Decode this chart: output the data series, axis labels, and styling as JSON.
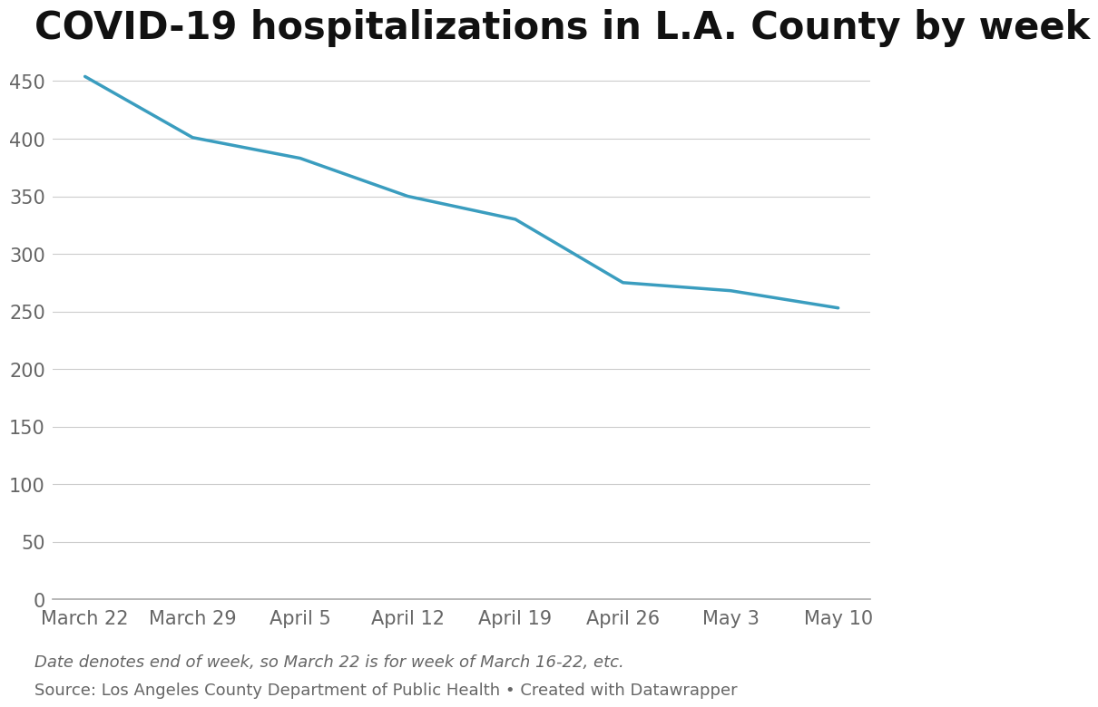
{
  "title": "COVID-19 hospitalizations in L.A. County by week",
  "x_labels": [
    "March 22",
    "March 29",
    "April 5",
    "April 12",
    "April 19",
    "April 26",
    "May 3",
    "May 10"
  ],
  "y_values": [
    454,
    401,
    383,
    350,
    330,
    275,
    268,
    253
  ],
  "line_color": "#3a9dbf",
  "line_width": 2.5,
  "ylim": [
    0,
    470
  ],
  "yticks": [
    0,
    50,
    100,
    150,
    200,
    250,
    300,
    350,
    400,
    450
  ],
  "background_color": "#ffffff",
  "grid_color": "#cccccc",
  "title_fontsize": 30,
  "tick_fontsize": 15,
  "footnote_italic": "Date denotes end of week, so March 22 is for week of March 16-22, etc.",
  "footnote_source": "Source: Los Angeles County Department of Public Health • Created with Datawrapper",
  "footnote_fontsize": 13,
  "title_color": "#111111",
  "tick_color": "#666666",
  "spine_bottom_color": "#aaaaaa"
}
